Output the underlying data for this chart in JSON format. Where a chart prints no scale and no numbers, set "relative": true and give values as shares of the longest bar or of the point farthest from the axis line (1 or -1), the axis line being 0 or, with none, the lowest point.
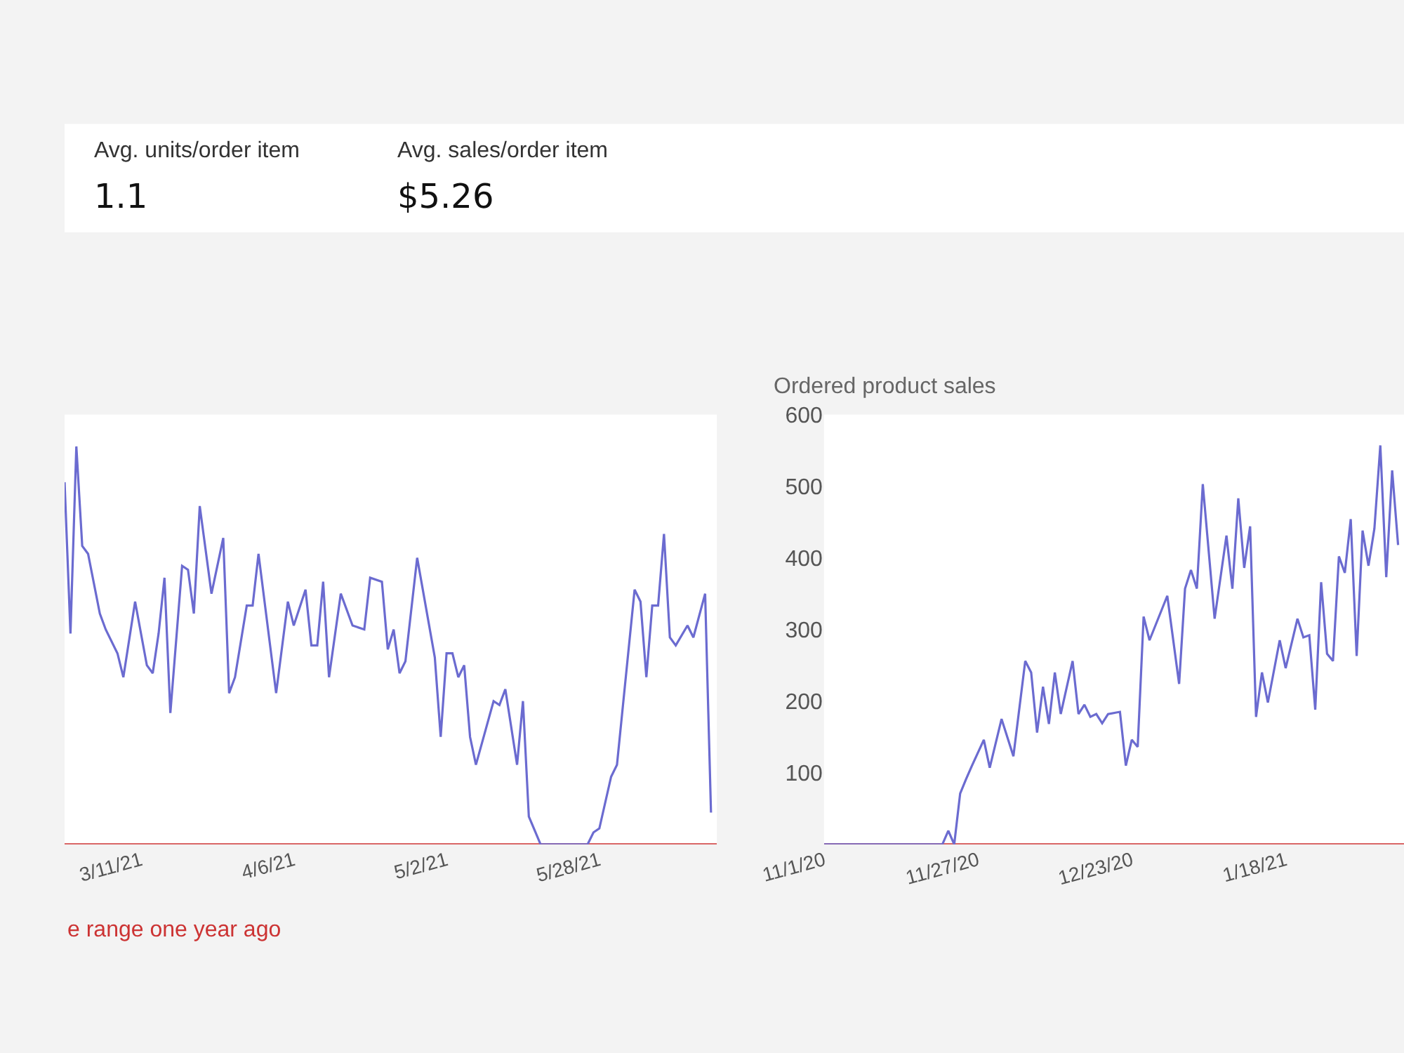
{
  "chart_data": [
    {
      "type": "other",
      "annotations": [
        "Avg. units/order item",
        "1.1",
        "Avg. sales/order item",
        "$5.26"
      ]
    },
    {
      "type": "line",
      "relative": true,
      "legend": "bottom",
      "xlim": [
        "2021-02-26",
        "2021-06-17"
      ],
      "xticks": [
        {
          "value": "2021-03-11",
          "label": "3/11/21"
        },
        {
          "value": "2021-04-06",
          "label": "4/6/21"
        },
        {
          "value": "2021-05-02",
          "label": "5/2/21"
        },
        {
          "value": "2021-05-28",
          "label": "5/28/21"
        }
      ],
      "series": [
        {
          "color": "#6b6bd0",
          "x": [
            "2021-02-26",
            "2021-02-27",
            "2021-02-28",
            "2021-03-01",
            "2021-03-02",
            "2021-03-04",
            "2021-03-05",
            "2021-03-07",
            "2021-03-08",
            "2021-03-10",
            "2021-03-12",
            "2021-03-13",
            "2021-03-14",
            "2021-03-15",
            "2021-03-16",
            "2021-03-18",
            "2021-03-19",
            "2021-03-20",
            "2021-03-21",
            "2021-03-23",
            "2021-03-25",
            "2021-03-26",
            "2021-03-27",
            "2021-03-29",
            "2021-03-30",
            "2021-03-31",
            "2021-04-03",
            "2021-04-05",
            "2021-04-06",
            "2021-04-08",
            "2021-04-09",
            "2021-04-10",
            "2021-04-11",
            "2021-04-12",
            "2021-04-14",
            "2021-04-16",
            "2021-04-18",
            "2021-04-19",
            "2021-04-21",
            "2021-04-22",
            "2021-04-23",
            "2021-04-24",
            "2021-04-25",
            "2021-04-27",
            "2021-04-30",
            "2021-05-01",
            "2021-05-02",
            "2021-05-03",
            "2021-05-04",
            "2021-05-05",
            "2021-05-06",
            "2021-05-07",
            "2021-05-10",
            "2021-05-11",
            "2021-05-12",
            "2021-05-14",
            "2021-05-15",
            "2021-05-16",
            "2021-05-18",
            "2021-05-26",
            "2021-05-27",
            "2021-05-28",
            "2021-05-30",
            "2021-05-31",
            "2021-06-03",
            "2021-06-04",
            "2021-06-05",
            "2021-06-06",
            "2021-06-07",
            "2021-06-08",
            "2021-06-09",
            "2021-06-10",
            "2021-06-12",
            "2021-06-13",
            "2021-06-15",
            "2021-06-16"
          ],
          "values": [
            0.91,
            0.53,
            1.0,
            0.75,
            0.73,
            0.58,
            0.54,
            0.48,
            0.42,
            0.61,
            0.45,
            0.43,
            0.53,
            0.67,
            0.33,
            0.7,
            0.69,
            0.58,
            0.85,
            0.63,
            0.77,
            0.38,
            0.42,
            0.6,
            0.6,
            0.73,
            0.38,
            0.61,
            0.55,
            0.64,
            0.5,
            0.5,
            0.66,
            0.42,
            0.63,
            0.55,
            0.54,
            0.67,
            0.66,
            0.49,
            0.54,
            0.43,
            0.46,
            0.72,
            0.47,
            0.27,
            0.48,
            0.48,
            0.42,
            0.45,
            0.27,
            0.2,
            0.36,
            0.35,
            0.39,
            0.2,
            0.36,
            0.07,
            0,
            0,
            0.03,
            0.04,
            0.17,
            0.2,
            0.64,
            0.61,
            0.42,
            0.6,
            0.6,
            0.78,
            0.52,
            0.5,
            0.55,
            0.52,
            0.63,
            0.08
          ]
        },
        {
          "name": "e range one year ago",
          "color": "#cc3333",
          "x": [
            "2021-02-26",
            "2021-06-17"
          ],
          "values": [
            0,
            0
          ]
        }
      ]
    },
    {
      "type": "line",
      "title": "Ordered product sales",
      "xlim": [
        "2020-11-01",
        "2021-02-07"
      ],
      "ylim": [
        0,
        600
      ],
      "yticks": [
        100,
        200,
        300,
        400,
        500,
        600
      ],
      "xticks": [
        {
          "value": "2020-11-01",
          "label": "11/1/20"
        },
        {
          "value": "2020-11-27",
          "label": "11/27/20"
        },
        {
          "value": "2020-12-23",
          "label": "12/23/20"
        },
        {
          "value": "2021-01-18",
          "label": "1/18/21"
        }
      ],
      "series": [
        {
          "color": "#6b6bd0",
          "x": [
            "2020-11-01",
            "2020-11-21",
            "2020-11-22",
            "2020-11-23",
            "2020-11-24",
            "2020-11-25",
            "2020-11-26",
            "2020-11-28",
            "2020-11-29",
            "2020-12-01",
            "2020-12-03",
            "2020-12-05",
            "2020-12-06",
            "2020-12-07",
            "2020-12-08",
            "2020-12-09",
            "2020-12-10",
            "2020-12-11",
            "2020-12-13",
            "2020-12-14",
            "2020-12-15",
            "2020-12-16",
            "2020-12-17",
            "2020-12-18",
            "2020-12-19",
            "2020-12-21",
            "2020-12-22",
            "2020-12-23",
            "2020-12-24",
            "2020-12-25",
            "2020-12-26",
            "2020-12-29",
            "2020-12-31",
            "2021-01-01",
            "2021-01-02",
            "2021-01-03",
            "2021-01-04",
            "2021-01-06",
            "2021-01-08",
            "2021-01-09",
            "2021-01-10",
            "2021-01-11",
            "2021-01-12",
            "2021-01-13",
            "2021-01-14",
            "2021-01-15",
            "2021-01-17",
            "2021-01-18",
            "2021-01-20",
            "2021-01-21",
            "2021-01-22",
            "2021-01-23",
            "2021-01-24",
            "2021-01-25",
            "2021-01-26",
            "2021-01-27",
            "2021-01-28",
            "2021-01-29",
            "2021-01-30",
            "2021-01-31",
            "2021-02-01",
            "2021-02-02",
            "2021-02-03",
            "2021-02-04",
            "2021-02-05",
            "2021-02-06"
          ],
          "values": [
            0,
            0,
            19,
            0,
            71,
            91,
            110,
            146,
            107,
            175,
            123,
            256,
            240,
            156,
            220,
            168,
            240,
            182,
            256,
            182,
            195,
            178,
            182,
            169,
            182,
            185,
            110,
            146,
            136,
            318,
            285,
            347,
            224,
            357,
            383,
            357,
            503,
            315,
            431,
            357,
            483,
            386,
            444,
            178,
            240,
            198,
            285,
            246,
            315,
            289,
            292,
            188,
            366,
            266,
            256,
            402,
            379,
            454,
            263,
            438,
            389,
            441,
            557,
            373,
            522,
            418
          ]
        },
        {
          "color": "#cc3333",
          "x": [
            "2020-11-01",
            "2021-02-07"
          ],
          "values": [
            0,
            0
          ]
        }
      ]
    }
  ]
}
